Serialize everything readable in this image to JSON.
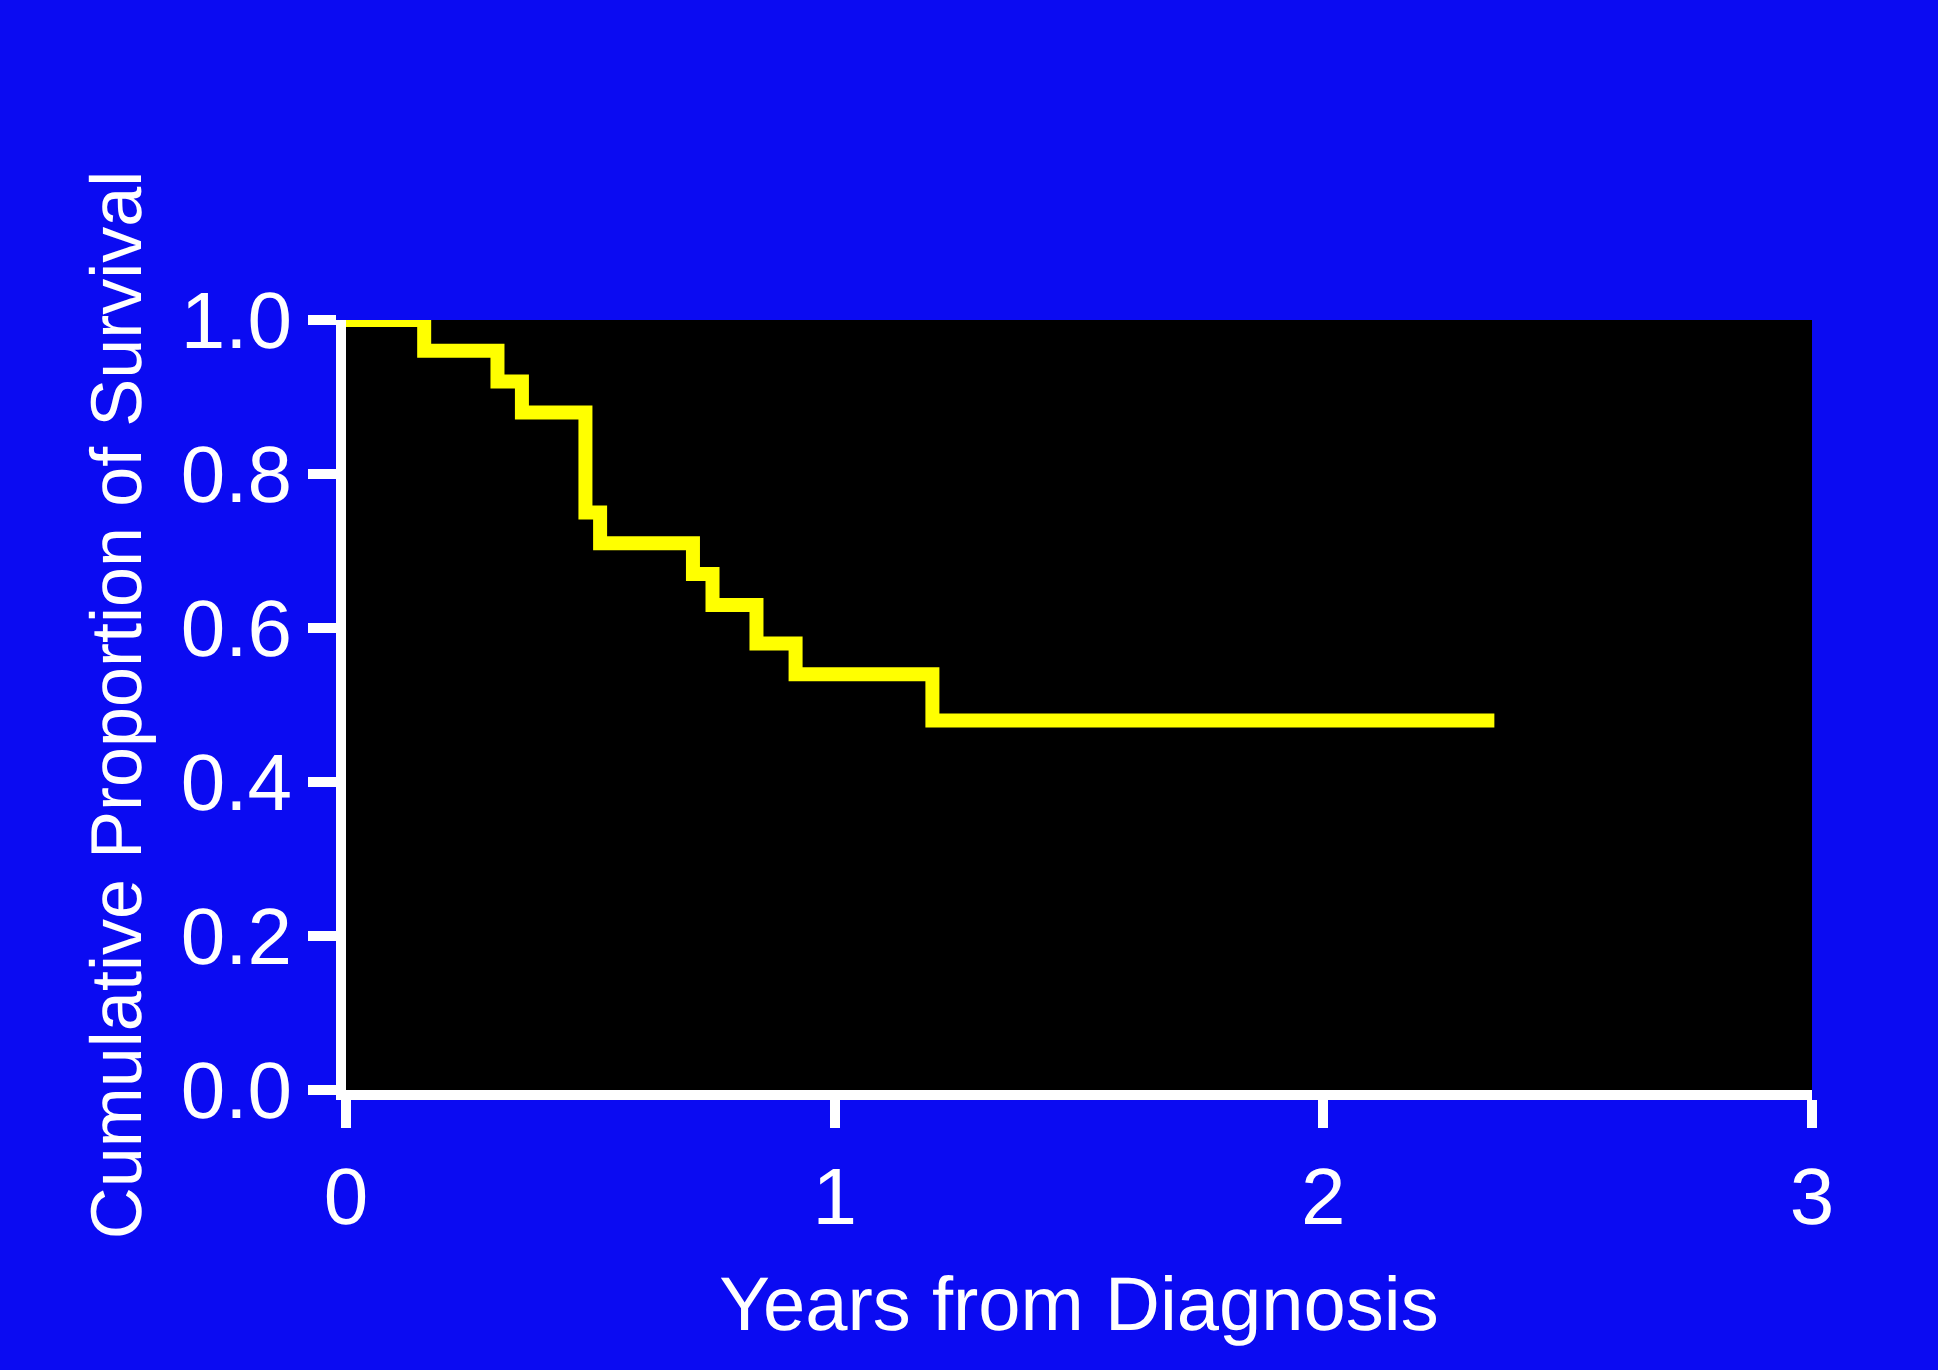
{
  "chart_data": {
    "type": "step",
    "xlabel": "Years from Diagnosis",
    "ylabel": "Cumulative Proportion of Survival",
    "x": [
      0,
      0.16,
      0.31,
      0.36,
      0.49,
      0.52,
      0.71,
      0.75,
      0.84,
      0.92,
      1.2,
      2.35
    ],
    "series": [
      {
        "color": "#ffff00",
        "values": [
          1.0,
          0.96,
          0.92,
          0.88,
          0.75,
          0.71,
          0.67,
          0.63,
          0.58,
          0.54,
          0.48,
          0.48
        ]
      }
    ],
    "xlim": [
      0,
      3
    ],
    "ylim": [
      0,
      1
    ],
    "xticks": [
      0,
      1,
      2,
      3
    ],
    "yticks": [
      {
        "value": 0,
        "label": "0.0"
      },
      {
        "value": 0.2,
        "label": "0.2"
      },
      {
        "value": 0.4,
        "label": "0.4"
      },
      {
        "value": 0.6,
        "label": "0.6"
      },
      {
        "value": 0.8,
        "label": "0.8"
      },
      {
        "value": 1,
        "label": "1.0"
      }
    ],
    "grid": false,
    "legend": false,
    "marker": "none",
    "line_style": "solid"
  }
}
